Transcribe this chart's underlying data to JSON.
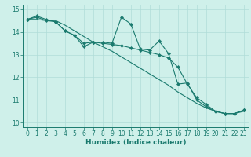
{
  "xlabel": "Humidex (Indice chaleur)",
  "bg_color": "#cff0ea",
  "grid_color": "#b0ddd8",
  "line_color": "#1a7a6e",
  "xlim": [
    -0.5,
    23.5
  ],
  "ylim": [
    9.8,
    15.2
  ],
  "yticks": [
    10,
    11,
    12,
    13,
    14,
    15
  ],
  "xticks": [
    0,
    1,
    2,
    3,
    4,
    5,
    6,
    7,
    8,
    9,
    10,
    11,
    12,
    13,
    14,
    15,
    16,
    17,
    18,
    19,
    20,
    21,
    22,
    23
  ],
  "line1_x": [
    0,
    1,
    2,
    3,
    4,
    5,
    6,
    7,
    8,
    9,
    10,
    11,
    12,
    13,
    14,
    15,
    16,
    17,
    18,
    19,
    20,
    21,
    22,
    23
  ],
  "line1_y": [
    14.55,
    14.7,
    14.55,
    14.45,
    14.05,
    13.85,
    13.35,
    13.55,
    13.55,
    13.5,
    14.65,
    14.35,
    13.25,
    13.2,
    13.6,
    13.05,
    11.7,
    11.75,
    11.0,
    10.7,
    10.5,
    10.4,
    10.4,
    10.55
  ],
  "line2_x": [
    0,
    1,
    2,
    3,
    4,
    5,
    6,
    7,
    8,
    9,
    10,
    11,
    12,
    13,
    14,
    15,
    16,
    17,
    18,
    19,
    20,
    21,
    22,
    23
  ],
  "line2_y": [
    14.55,
    14.55,
    14.5,
    14.5,
    14.3,
    14.05,
    13.8,
    13.55,
    13.35,
    13.15,
    12.9,
    12.65,
    12.4,
    12.15,
    11.9,
    11.65,
    11.35,
    11.1,
    10.85,
    10.65,
    10.5,
    10.4,
    10.4,
    10.5
  ],
  "line3_x": [
    0,
    1,
    2,
    3,
    4,
    5,
    6,
    7,
    8,
    9,
    10,
    11,
    12,
    13,
    14,
    15,
    16,
    17,
    18,
    19,
    20,
    21,
    22,
    23
  ],
  "line3_y": [
    14.55,
    14.65,
    14.5,
    14.45,
    14.05,
    13.85,
    13.5,
    13.55,
    13.5,
    13.45,
    13.4,
    13.3,
    13.2,
    13.1,
    13.0,
    12.85,
    12.45,
    11.7,
    11.1,
    10.8,
    10.5,
    10.4,
    10.4,
    10.55
  ],
  "tick_fontsize": 5.5,
  "xlabel_fontsize": 6.5
}
